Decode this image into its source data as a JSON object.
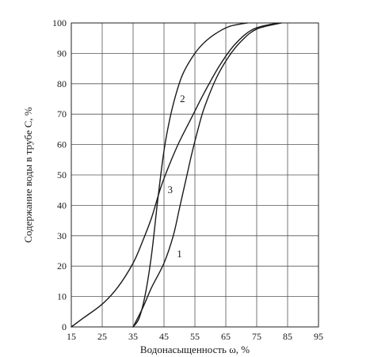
{
  "chart_data": {
    "type": "line",
    "title": "",
    "xlabel": "Водонасыщенность ω, %",
    "ylabel": "Содержание воды в трубе C, %",
    "xlim": [
      15,
      95
    ],
    "ylim": [
      0,
      100
    ],
    "xticks": [
      "15",
      "25",
      "35",
      "45",
      "55",
      "65",
      "75",
      "85",
      "95"
    ],
    "yticks": [
      "0",
      "10",
      "20",
      "30",
      "40",
      "50",
      "60",
      "70",
      "80",
      "90",
      "100"
    ],
    "grid": true,
    "legend": "none",
    "series": [
      {
        "name": "1",
        "label": "1",
        "label_at": [
          50,
          24
        ],
        "points": [
          [
            35,
            0
          ],
          [
            38,
            6
          ],
          [
            41,
            13
          ],
          [
            45,
            21
          ],
          [
            48,
            30
          ],
          [
            50,
            39
          ],
          [
            52,
            48
          ],
          [
            54,
            57
          ],
          [
            56,
            65
          ],
          [
            58,
            72
          ],
          [
            62,
            82
          ],
          [
            66,
            89
          ],
          [
            70,
            94
          ],
          [
            75,
            98
          ],
          [
            83,
            100
          ]
        ]
      },
      {
        "name": "2",
        "label": "2",
        "label_at": [
          51,
          75
        ],
        "points": [
          [
            35,
            0
          ],
          [
            37,
            3
          ],
          [
            39,
            11
          ],
          [
            41,
            24
          ],
          [
            43,
            42
          ],
          [
            45,
            58
          ],
          [
            47,
            69
          ],
          [
            49,
            77
          ],
          [
            51,
            83
          ],
          [
            54,
            88.5
          ],
          [
            57,
            92.5
          ],
          [
            61,
            96
          ],
          [
            66,
            98.8
          ],
          [
            72,
            100
          ]
        ]
      },
      {
        "name": "3",
        "label": "3",
        "label_at": [
          47,
          45
        ],
        "points": [
          [
            15,
            0
          ],
          [
            19,
            3
          ],
          [
            25,
            7.5
          ],
          [
            30,
            13
          ],
          [
            35,
            21
          ],
          [
            38,
            28
          ],
          [
            41,
            36
          ],
          [
            44,
            46
          ],
          [
            47,
            54
          ],
          [
            50,
            61
          ],
          [
            54,
            69
          ],
          [
            58,
            77
          ],
          [
            63,
            86
          ],
          [
            68,
            93
          ],
          [
            74,
            98
          ],
          [
            82,
            100
          ]
        ]
      }
    ]
  }
}
